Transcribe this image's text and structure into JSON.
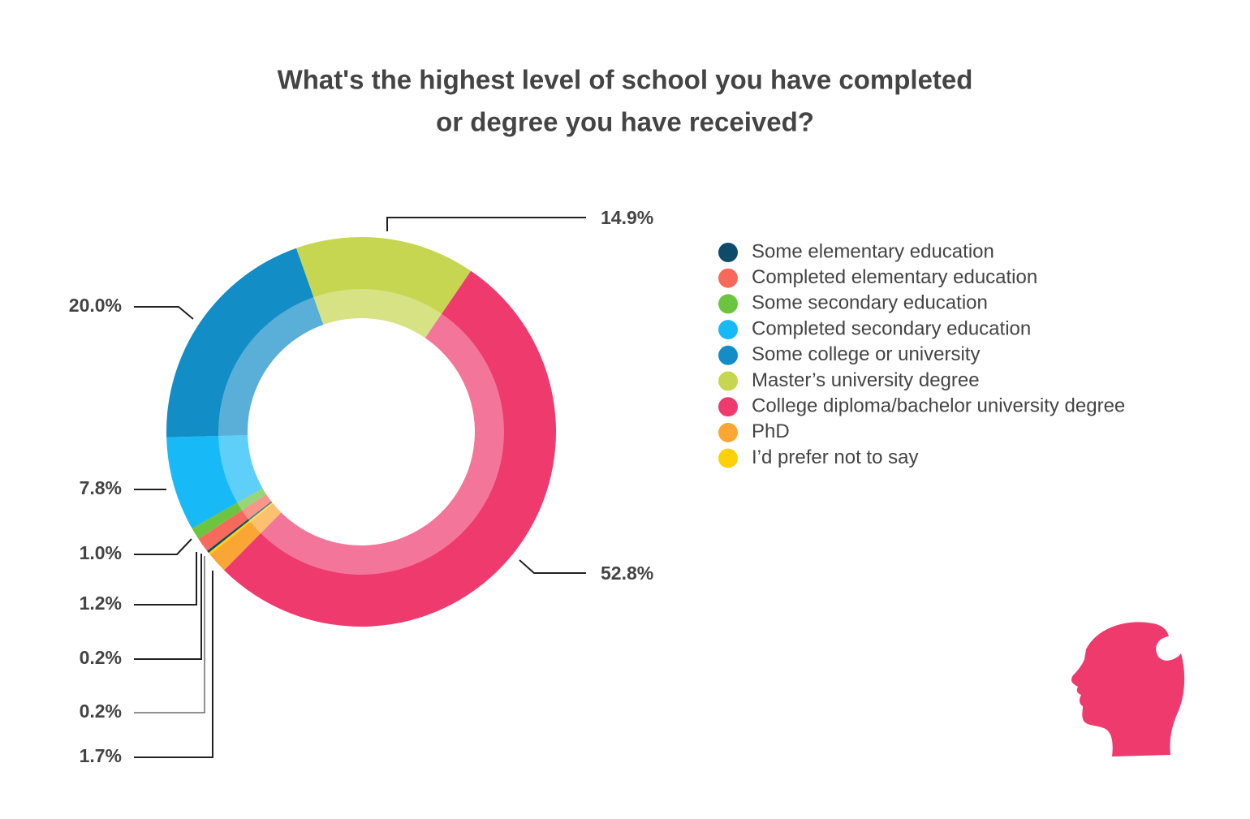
{
  "chart_data": {
    "type": "donut",
    "title": [
      "What's the highest level of school you have completed",
      "or degree you have received?"
    ],
    "categories": [
      "Some elementary education",
      "Completed elementary education",
      "Some secondary education",
      "Completed secondary education",
      "Some college or university",
      "Master’s university degree",
      "College diploma/bachelor university degree",
      "PhD",
      "I’d prefer not to say"
    ],
    "values": [
      0.2,
      1.2,
      1.0,
      7.8,
      20.0,
      14.9,
      52.8,
      1.7,
      0.2
    ],
    "value_labels": [
      "0.2%",
      "1.2%",
      "1.0%",
      "7.8%",
      "20.0%",
      "14.9%",
      "52.8%",
      "1.7%",
      "0.2%"
    ],
    "colors": [
      "#0e4a6a",
      "#f7695a",
      "#6dc43f",
      "#17baf7",
      "#128dc6",
      "#c6d650",
      "#ee3a6d",
      "#faa634",
      "#fcd107"
    ],
    "legend": "right"
  }
}
